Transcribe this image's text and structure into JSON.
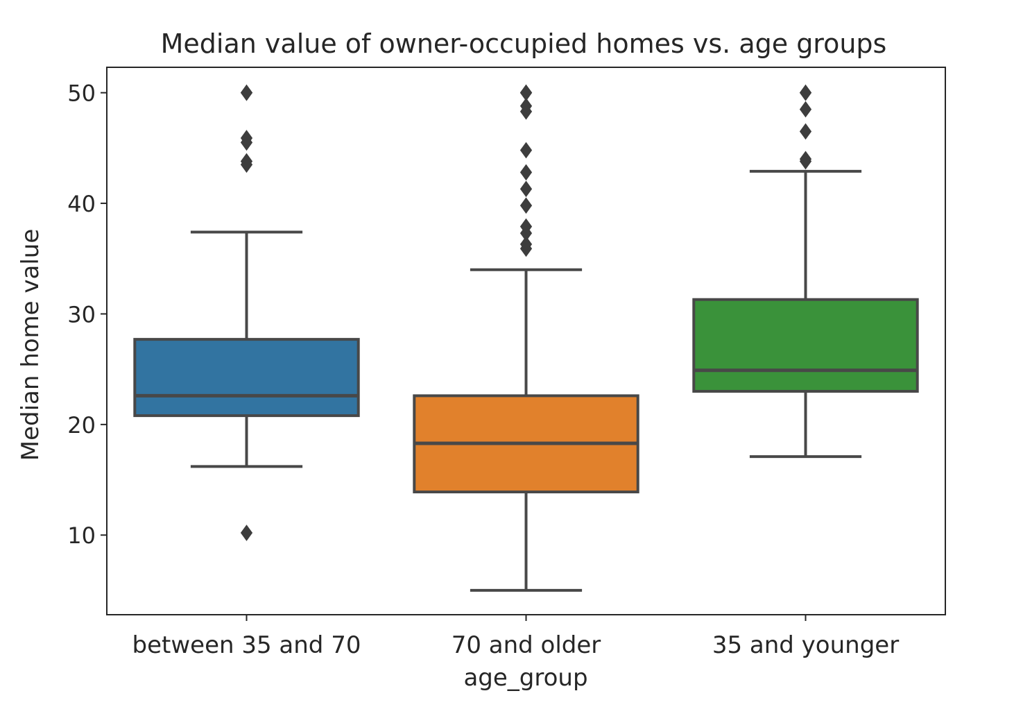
{
  "chart_data": {
    "type": "box",
    "title": "Median value of owner-occupied homes vs. age groups",
    "xlabel": "age_group",
    "ylabel": "Median home value",
    "ylim": [
      2.8,
      52.3
    ],
    "yticks": [
      10,
      20,
      30,
      40,
      50
    ],
    "grid": false,
    "legend": null,
    "categories": [
      "between 35 and 70",
      "70 and older",
      "35 and younger"
    ],
    "boxes": [
      {
        "category": "between 35 and 70",
        "color": "#3274a1",
        "whisker_low": 16.2,
        "q1": 20.8,
        "median": 22.6,
        "q3": 27.7,
        "whisker_high": 37.4,
        "outliers": [
          10.2,
          43.5,
          43.8,
          45.5,
          45.9,
          50.0,
          50.0
        ]
      },
      {
        "category": "70 and older",
        "color": "#e1812c",
        "whisker_low": 5.0,
        "q1": 13.9,
        "median": 18.3,
        "q3": 22.6,
        "whisker_high": 34.0,
        "outliers": [
          35.9,
          36.3,
          37.3,
          37.9,
          39.8,
          41.3,
          42.8,
          44.8,
          48.3,
          48.8,
          50.0,
          50.0,
          50.0,
          50.0
        ]
      },
      {
        "category": "35 and younger",
        "color": "#3a923a",
        "whisker_low": 17.1,
        "q1": 23.0,
        "median": 24.9,
        "q3": 31.3,
        "whisker_high": 42.9,
        "outliers": [
          43.8,
          44.0,
          46.5,
          48.5,
          50.0,
          50.0
        ]
      }
    ]
  }
}
